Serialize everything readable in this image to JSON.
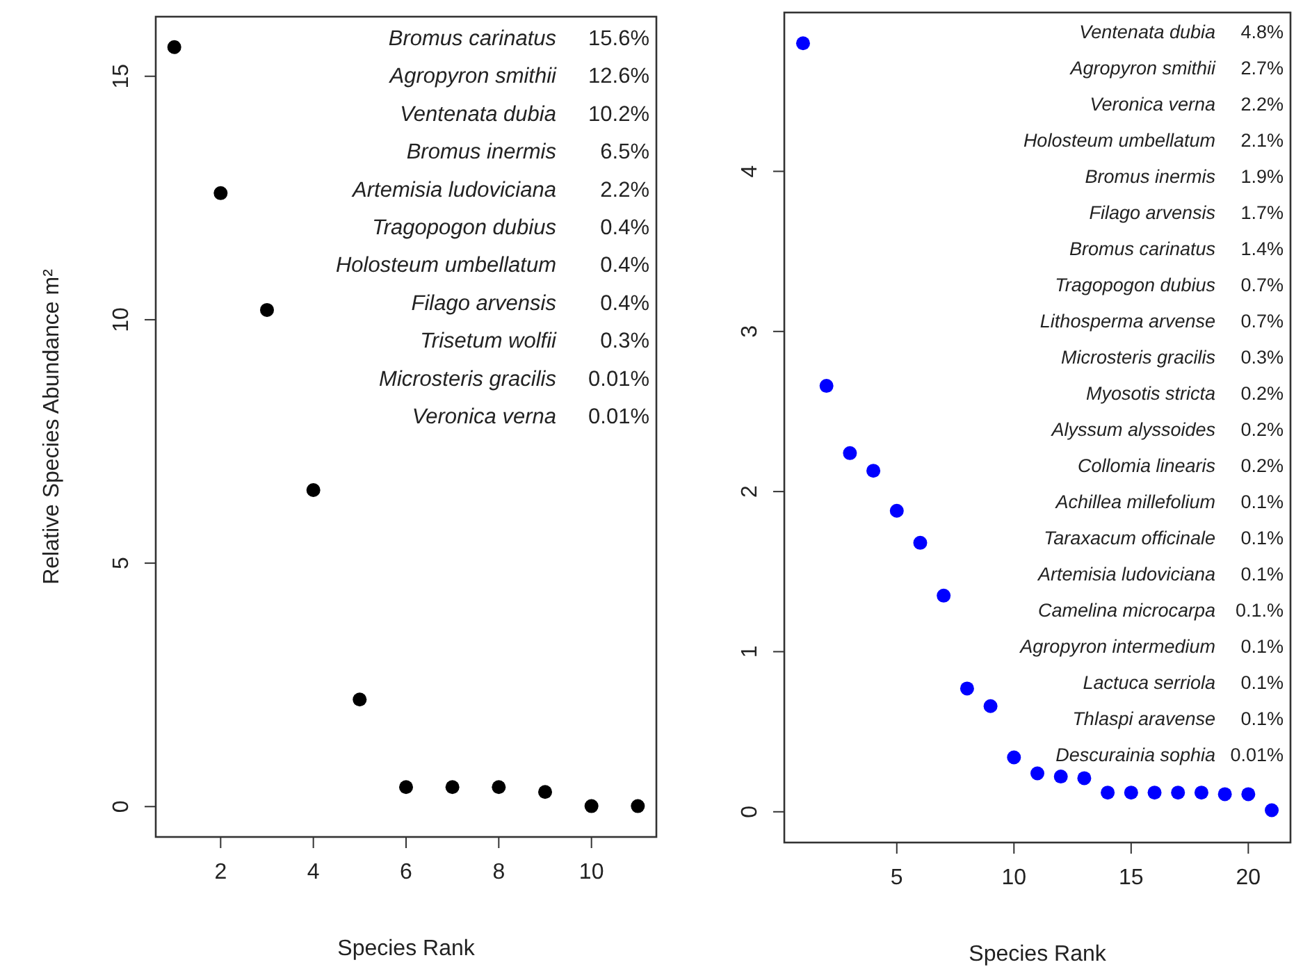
{
  "chart_data": [
    {
      "type": "scatter",
      "xlabel": "Species Rank",
      "ylabel": "Relative Species Abundance m²",
      "marker": "circle",
      "xlim": [
        0.6,
        11.4
      ],
      "ylim": [
        -0.624,
        16.224
      ],
      "xticks": [
        2,
        4,
        6,
        8,
        10
      ],
      "yticks": [
        0,
        5,
        10,
        15
      ],
      "series": [
        {
          "color": "#000000",
          "x": [
            1,
            2,
            3,
            4,
            5,
            6,
            7,
            8,
            9,
            10,
            11
          ],
          "values": [
            15.6,
            12.6,
            10.2,
            6.5,
            2.2,
            0.4,
            0.4,
            0.4,
            0.3,
            0.01,
            0.01
          ]
        }
      ],
      "annotations": [
        "Bromus carinatus 15.6%",
        "Agropyron smithii 12.6%",
        "Ventenata dubia 10.2%",
        "Bromus inermis 6.5%",
        "Artemisia ludoviciana 2.2%",
        "Tragopogon dubius 0.4%",
        "Holosteum umbellatum 0.4%",
        "Filago arvensis 0.4%",
        "Trisetum wolfii 0.3%",
        "Microsteris gracilis 0.01%",
        "Veronica verna 0.01%"
      ]
    },
    {
      "type": "scatter",
      "xlabel": "Species Rank",
      "marker": "circle",
      "xlim": [
        0.2,
        21.8
      ],
      "ylim": [
        -0.192,
        4.992
      ],
      "xticks": [
        5,
        10,
        15,
        20
      ],
      "yticks": [
        0,
        1,
        2,
        3,
        4
      ],
      "series": [
        {
          "color": "#0000ff",
          "x": [
            1,
            2,
            3,
            4,
            5,
            6,
            7,
            8,
            9,
            10,
            11,
            12,
            13,
            14,
            15,
            16,
            17,
            18,
            19,
            20,
            21
          ],
          "values": [
            4.8,
            2.66,
            2.24,
            2.13,
            1.88,
            1.68,
            1.35,
            0.77,
            0.66,
            0.34,
            0.24,
            0.22,
            0.21,
            0.12,
            0.12,
            0.12,
            0.12,
            0.12,
            0.11,
            0.11,
            0.01
          ]
        }
      ],
      "annotations": [
        "Ventenata dubia 4.8%",
        "Agropyron smithii 2.7%",
        "Veronica verna 2.2%",
        "Holosteum umbellatum 2.1%",
        "Bromus inermis 1.9%",
        "Filago arvensis 1.7%",
        "Bromus carinatus 1.4%",
        "Tragopogon dubius 0.7%",
        "Lithosperma arvense 0.7%",
        "Microsteris gracilis 0.3%",
        "Myosotis stricta 0.2%",
        "Alyssum alyssoides 0.2%",
        "Collomia linearis 0.2%",
        "Achillea millefolium 0.1%",
        "Taraxacum officinale 0.1%",
        "Artemisia ludoviciana 0.1%",
        "Camelina microcarpa 0.1.%",
        "Agropyron intermedium 0.1%",
        "Lactuca serriola 0.1%",
        "Thlaspi aravense 0.1%",
        "Descurainia sophia 0.01%"
      ]
    }
  ]
}
